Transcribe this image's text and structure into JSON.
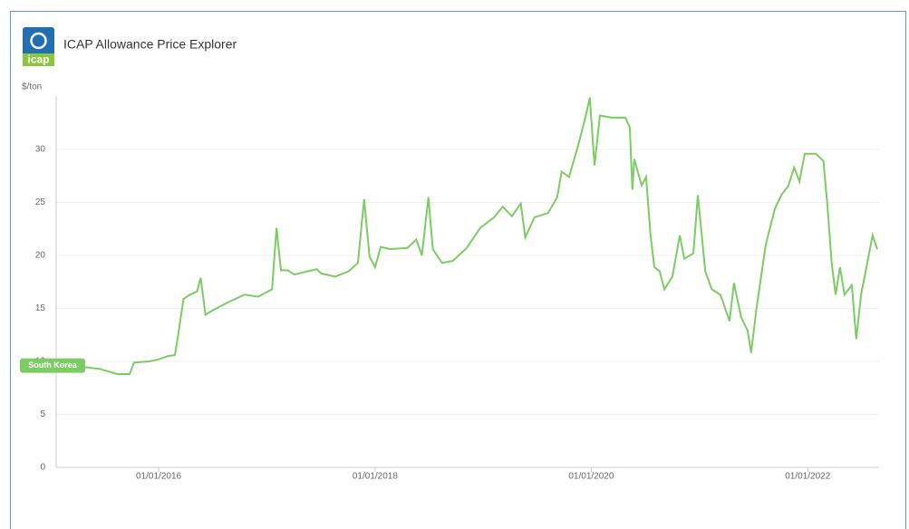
{
  "chart_data": {
    "type": "line",
    "title": "ICAP Allowance Price Explorer",
    "logo_text": "icap",
    "y_label": "$/ton",
    "x": [
      "2015-01-20",
      "2015-04-15",
      "2015-06-15",
      "2015-08-15",
      "2015-09-25",
      "2015-10-10",
      "2015-12-01",
      "2016-01-01",
      "2016-02-01",
      "2016-02-25",
      "2016-03-07",
      "2016-03-25",
      "2016-04-16",
      "2016-05-10",
      "2016-05-22",
      "2016-06-07",
      "2016-07-01",
      "2016-08-17",
      "2016-10-17",
      "2016-12-02",
      "2017-01-18",
      "2017-02-02",
      "2017-02-17",
      "2017-03-12",
      "2017-04-03",
      "2017-05-18",
      "2017-06-18",
      "2017-07-03",
      "2017-08-19",
      "2017-10-04",
      "2017-11-04",
      "2017-11-25",
      "2017-12-13",
      "2018-01-01",
      "2018-01-20",
      "2018-02-20",
      "2018-04-20",
      "2018-05-20",
      "2018-06-08",
      "2018-06-30",
      "2018-07-15",
      "2018-08-15",
      "2018-09-21",
      "2018-11-06",
      "2018-12-22",
      "2019-02-07",
      "2019-03-08",
      "2019-04-08",
      "2019-05-08",
      "2019-05-23",
      "2019-06-23",
      "2019-08-08",
      "2019-09-08",
      "2019-09-23",
      "2019-10-18",
      "2019-11-18",
      "2019-12-12",
      "2019-12-27",
      "2020-01-12",
      "2020-01-30",
      "2020-03-10",
      "2020-04-25",
      "2020-05-10",
      "2020-05-19",
      "2020-05-25",
      "2020-06-19",
      "2020-07-04",
      "2020-07-19",
      "2020-08-01",
      "2020-08-19",
      "2020-09-04",
      "2020-10-01",
      "2020-10-26",
      "2020-11-10",
      "2020-12-11",
      "2020-12-26",
      "2021-01-20",
      "2021-02-11",
      "2021-03-12",
      "2021-04-12",
      "2021-04-27",
      "2021-05-21",
      "2021-06-12",
      "2021-06-24",
      "2021-07-12",
      "2021-08-12",
      "2021-09-12",
      "2021-10-04",
      "2021-10-28",
      "2021-11-16",
      "2021-12-04",
      "2021-12-22",
      "2022-01-29",
      "2022-02-23",
      "2022-03-08",
      "2022-03-23",
      "2022-04-05",
      "2022-04-20",
      "2022-05-05",
      "2022-05-30",
      "2022-06-14",
      "2022-06-30",
      "2022-07-24",
      "2022-08-08",
      "2022-08-24"
    ],
    "series": [
      {
        "name": "South Korea",
        "color": "#7dcc63",
        "values": [
          9.6,
          9.5,
          9.3,
          8.8,
          8.8,
          9.9,
          10.0,
          10.2,
          10.5,
          10.6,
          12.5,
          15.9,
          16.3,
          16.6,
          17.9,
          14.4,
          14.8,
          15.5,
          16.3,
          16.1,
          16.8,
          22.6,
          18.6,
          18.6,
          18.2,
          18.5,
          18.7,
          18.3,
          18.0,
          18.5,
          19.3,
          25.3,
          19.9,
          18.9,
          20.8,
          20.6,
          20.7,
          21.5,
          20.0,
          25.5,
          20.6,
          19.3,
          19.5,
          20.7,
          22.6,
          23.6,
          24.6,
          23.7,
          24.9,
          21.7,
          23.6,
          24.0,
          25.5,
          27.9,
          27.4,
          30.4,
          33.0,
          34.9,
          28.5,
          33.2,
          33.0,
          33.0,
          32.1,
          26.2,
          29.1,
          26.6,
          27.4,
          21.9,
          18.9,
          18.5,
          16.8,
          18.0,
          21.9,
          19.7,
          20.2,
          25.7,
          18.5,
          16.8,
          16.3,
          13.8,
          17.4,
          14.2,
          12.9,
          10.8,
          15.0,
          21.0,
          24.4,
          25.7,
          26.6,
          28.3,
          27.0,
          29.6,
          29.6,
          28.9,
          24.9,
          19.3,
          16.3,
          18.9,
          16.3,
          17.2,
          12.1,
          16.3,
          19.7,
          21.9,
          20.6
        ]
      }
    ],
    "xlim": [
      "2015-01-20",
      "2022-08-30"
    ],
    "xticks": [
      {
        "value": "2016-01-01",
        "label": "01/01/2016"
      },
      {
        "value": "2018-01-01",
        "label": "01/01/2018"
      },
      {
        "value": "2020-01-01",
        "label": "01/01/2020"
      },
      {
        "value": "2022-01-01",
        "label": "01/01/2022"
      }
    ],
    "ylim": [
      0,
      35
    ],
    "yticks": [
      0,
      5,
      10,
      15,
      20,
      25,
      30
    ],
    "grid": true
  }
}
